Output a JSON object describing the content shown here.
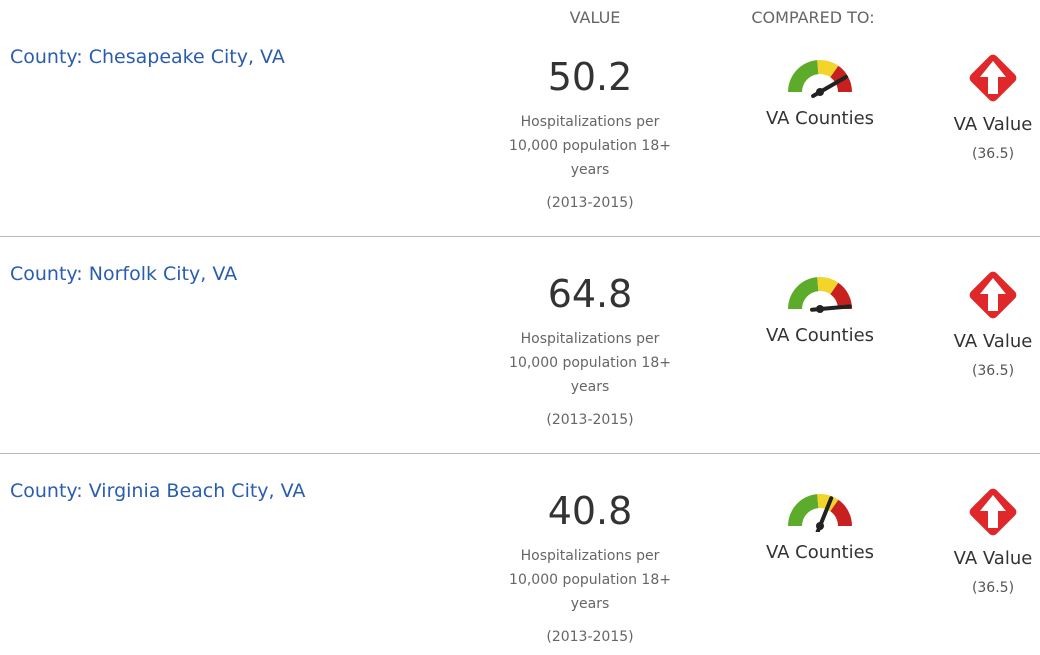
{
  "header": {
    "value_label": "VALUE",
    "compared_label": "COMPARED TO:"
  },
  "rows": [
    {
      "county": "County: Chesapeake City, VA",
      "value": "50.2",
      "unit": "Hospitalizations per 10,000 population 18+ years",
      "period": "(2013-2015)",
      "gauge_label": "VA Counties",
      "compare_label": "VA Value",
      "compare_value": "(36.5)"
    },
    {
      "county": "County: Norfolk City, VA",
      "value": "64.8",
      "unit": "Hospitalizations per 10,000 population 18+ years",
      "period": "(2013-2015)",
      "gauge_label": "VA Counties",
      "compare_label": "VA Value",
      "compare_value": "(36.5)"
    },
    {
      "county": "County: Virginia Beach City, VA",
      "value": "40.8",
      "unit": "Hospitalizations per 10,000 population 18+ years",
      "period": "(2013-2015)",
      "gauge_label": "VA Counties",
      "compare_label": "VA Value",
      "compare_value": "(36.5)"
    }
  ]
}
